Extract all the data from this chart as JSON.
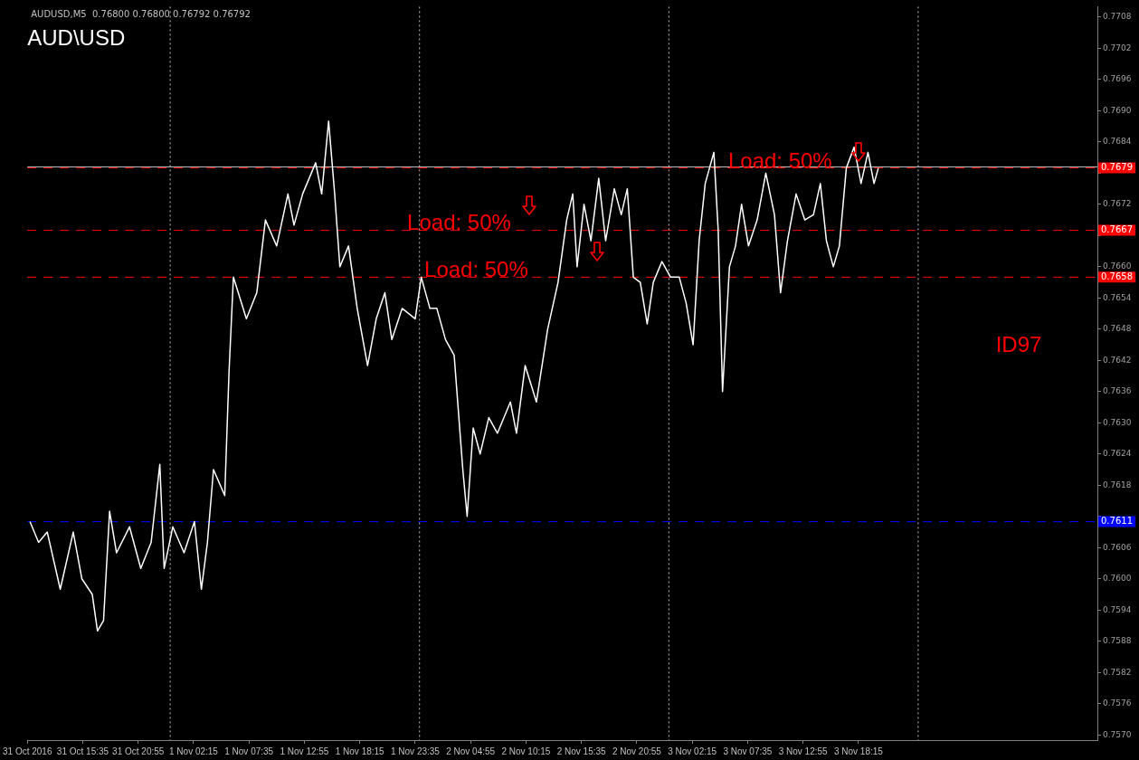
{
  "chart_data": {
    "type": "line",
    "title": "AUD\\USD",
    "subtitle": "AUDUSD,M5  0.76800 0.76800 0.76792 0.76792",
    "series": [
      {
        "color": "#ffffff",
        "x": [
          "2016-10-31T10:30",
          "2016-10-31T11:20",
          "2016-10-31T12:10",
          "2016-10-31T13:25",
          "2016-10-31T14:40",
          "2016-10-31T15:30",
          "2016-10-31T16:30",
          "2016-10-31T17:00",
          "2016-10-31T17:35",
          "2016-10-31T18:10",
          "2016-10-31T18:50",
          "2016-10-31T20:05",
          "2016-10-31T21:10",
          "2016-10-31T22:10",
          "2016-10-31T23:00",
          "2016-10-31T23:25",
          "2016-11-01T00:15",
          "2016-11-01T01:20",
          "2016-11-01T02:20",
          "2016-11-01T03:00",
          "2016-11-01T03:35",
          "2016-11-01T04:10",
          "2016-11-01T05:15",
          "2016-11-01T05:40",
          "2016-11-01T06:05",
          "2016-11-01T07:20",
          "2016-11-01T08:20",
          "2016-11-01T09:10",
          "2016-11-01T10:15",
          "2016-11-01T11:20",
          "2016-11-01T11:55",
          "2016-11-01T12:45",
          "2016-11-01T14:00",
          "2016-11-01T14:35",
          "2016-11-01T15:15",
          "2016-11-01T15:50",
          "2016-11-01T16:20",
          "2016-11-01T17:10",
          "2016-11-01T18:00",
          "2016-11-01T19:00",
          "2016-11-01T19:50",
          "2016-11-01T20:40",
          "2016-11-01T21:20",
          "2016-11-01T22:20",
          "2016-11-01T23:35",
          "2016-11-02T00:10",
          "2016-11-02T01:00",
          "2016-11-02T01:40",
          "2016-11-02T02:30",
          "2016-11-02T03:20",
          "2016-11-02T04:10",
          "2016-11-02T04:35",
          "2016-11-02T05:10",
          "2016-11-02T05:50",
          "2016-11-02T06:40",
          "2016-11-02T07:30",
          "2016-11-02T08:45",
          "2016-11-02T09:20",
          "2016-11-02T10:10",
          "2016-11-02T11:15",
          "2016-11-02T12:20",
          "2016-11-02T13:20",
          "2016-11-02T14:10",
          "2016-11-02T14:45",
          "2016-11-02T15:10",
          "2016-11-02T15:50",
          "2016-11-02T16:30",
          "2016-11-02T17:15",
          "2016-11-02T17:55",
          "2016-11-02T18:45",
          "2016-11-02T19:25",
          "2016-11-02T20:00",
          "2016-11-02T20:35",
          "2016-11-02T21:15",
          "2016-11-02T21:55",
          "2016-11-02T22:30",
          "2016-11-02T23:20",
          "2016-11-03T00:10",
          "2016-11-03T01:00",
          "2016-11-03T01:40",
          "2016-11-03T02:20",
          "2016-11-03T02:55",
          "2016-11-03T03:30",
          "2016-11-03T04:20",
          "2016-11-03T04:45",
          "2016-11-03T05:10",
          "2016-11-03T05:50",
          "2016-11-03T06:25",
          "2016-11-03T07:00",
          "2016-11-03T07:40",
          "2016-11-03T08:30",
          "2016-11-03T09:20",
          "2016-11-03T10:10",
          "2016-11-03T10:45",
          "2016-11-03T11:25",
          "2016-11-03T12:15",
          "2016-11-03T13:05",
          "2016-11-03T13:55",
          "2016-11-03T14:35",
          "2016-11-03T15:10",
          "2016-11-03T15:50",
          "2016-11-03T16:25",
          "2016-11-03T17:05",
          "2016-11-03T17:50",
          "2016-11-03T18:30",
          "2016-11-03T19:10",
          "2016-11-03T19:45",
          "2016-11-03T20:10"
        ],
        "values": [
          0.7611,
          0.7607,
          0.7609,
          0.7598,
          0.7609,
          0.76,
          0.7597,
          0.759,
          0.7592,
          0.7613,
          0.7605,
          0.761,
          0.7602,
          0.7607,
          0.7622,
          0.7602,
          0.761,
          0.7605,
          0.7611,
          0.7598,
          0.7607,
          0.7621,
          0.7616,
          0.764,
          0.7658,
          0.765,
          0.7655,
          0.7669,
          0.7664,
          0.7674,
          0.7668,
          0.7674,
          0.768,
          0.7674,
          0.7688,
          0.7674,
          0.766,
          0.7664,
          0.7652,
          0.7641,
          0.765,
          0.7655,
          0.7646,
          0.7652,
          0.765,
          0.7658,
          0.7652,
          0.7652,
          0.7646,
          0.7643,
          0.7621,
          0.7612,
          0.7629,
          0.7624,
          0.7631,
          0.7628,
          0.7634,
          0.7628,
          0.7641,
          0.7634,
          0.7648,
          0.7657,
          0.7669,
          0.7674,
          0.766,
          0.7672,
          0.7665,
          0.7677,
          0.7665,
          0.7675,
          0.767,
          0.7675,
          0.7658,
          0.7657,
          0.7649,
          0.7657,
          0.7661,
          0.7658,
          0.7658,
          0.7653,
          0.7645,
          0.7665,
          0.7676,
          0.7682,
          0.7667,
          0.7636,
          0.766,
          0.7664,
          0.7672,
          0.7664,
          0.7669,
          0.7678,
          0.767,
          0.7655,
          0.7665,
          0.7674,
          0.7669,
          0.767,
          0.7676,
          0.7665,
          0.766,
          0.7664,
          0.7679,
          0.7683,
          0.7676,
          0.7682,
          0.7676,
          0.7679
        ]
      }
    ],
    "xlim": [
      "2016-10-31T10:15",
      "2016-11-04T17:15"
    ],
    "xticks": [
      {
        "value": "2016-10-31T10:15",
        "label": "31 Oct 2016"
      },
      {
        "value": "2016-10-31T15:35",
        "label": "31 Oct 15:35"
      },
      {
        "value": "2016-10-31T20:55",
        "label": "31 Oct 20:55"
      },
      {
        "value": "2016-11-01T02:15",
        "label": "1 Nov 02:15"
      },
      {
        "value": "2016-11-01T07:35",
        "label": "1 Nov 07:35"
      },
      {
        "value": "2016-11-01T12:55",
        "label": "1 Nov 12:55"
      },
      {
        "value": "2016-11-01T18:15",
        "label": "1 Nov 18:15"
      },
      {
        "value": "2016-11-01T23:35",
        "label": "1 Nov 23:35"
      },
      {
        "value": "2016-11-02T04:55",
        "label": "2 Nov 04:55"
      },
      {
        "value": "2016-11-02T10:15",
        "label": "2 Nov 10:15"
      },
      {
        "value": "2016-11-02T15:35",
        "label": "2 Nov 15:35"
      },
      {
        "value": "2016-11-02T20:55",
        "label": "2 Nov 20:55"
      },
      {
        "value": "2016-11-03T02:15",
        "label": "3 Nov 02:15"
      },
      {
        "value": "2016-11-03T07:35",
        "label": "3 Nov 07:35"
      },
      {
        "value": "2016-11-03T12:55",
        "label": "3 Nov 12:55"
      },
      {
        "value": "2016-11-03T18:15",
        "label": "3 Nov 18:15"
      }
    ],
    "ylim": [
      0.7569,
      0.771
    ],
    "yticks": [
      {
        "value": 0.757,
        "label": "0.7570"
      },
      0.7576,
      0.7582,
      0.7588,
      0.7594,
      {
        "value": 0.76,
        "label": "0.7600"
      },
      0.7606,
      {
        "value": 0.7612,
        "label": null
      },
      0.7618,
      0.7624,
      {
        "value": 0.763,
        "label": "0.7630"
      },
      0.7636,
      0.7642,
      0.7648,
      0.7654,
      {
        "value": 0.766,
        "label": "0.7660"
      },
      {
        "value": 0.7666,
        "label": null
      },
      0.7672,
      {
        "value": 0.7678,
        "label": null
      },
      0.7684,
      {
        "value": 0.769,
        "label": "0.7690"
      },
      0.7696,
      0.7702,
      0.7708
    ],
    "ref_lines": [
      {
        "axis": "y",
        "value": 0.7679,
        "label": "0.7679",
        "color": "#ff0000",
        "line_style": "dashed"
      },
      {
        "axis": "y",
        "value": 0.76792,
        "label": null,
        "color": "#c0c0c0",
        "line_style": "solid"
      },
      {
        "axis": "y",
        "value": 0.7667,
        "label": "0.7667",
        "color": "#ff0000",
        "line_style": "dashed"
      },
      {
        "axis": "y",
        "value": 0.7658,
        "label": "0.7658",
        "color": "#ff0000",
        "line_style": "dashed"
      },
      {
        "axis": "y",
        "value": 0.7611,
        "label": "0.7611",
        "color": "#0000ff",
        "line_style": "dashed"
      },
      {
        "axis": "x",
        "value": "2016-11-01T00:00",
        "label": null,
        "color": "#c0c0c0",
        "line_style": "dotted"
      },
      {
        "axis": "x",
        "value": "2016-11-02T00:00",
        "label": null,
        "color": "#c0c0c0",
        "line_style": "dotted"
      },
      {
        "axis": "x",
        "value": "2016-11-03T00:00",
        "label": null,
        "color": "#c0c0c0",
        "line_style": "dotted"
      },
      {
        "axis": "x",
        "value": "2016-11-04T00:00",
        "label": null,
        "color": "#c0c0c0",
        "line_style": "dotted"
      }
    ],
    "annotations": [
      "Load: 50%",
      "Load: 50%",
      "Load: 50%",
      "ID97"
    ],
    "grid": false,
    "legend": false
  }
}
